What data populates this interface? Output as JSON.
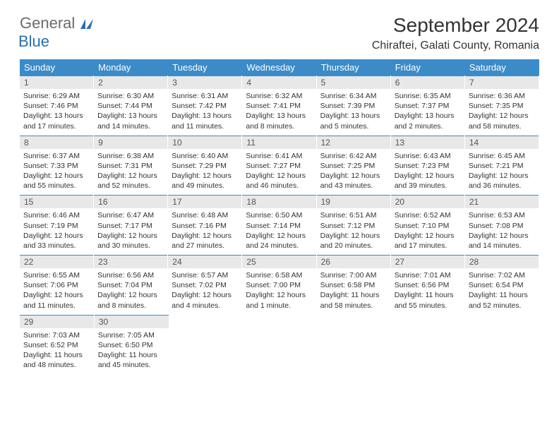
{
  "logo": {
    "main": "General",
    "sub": "Blue"
  },
  "title": "September 2024",
  "location": "Chiraftei, Galati County, Romania",
  "colors": {
    "header_bg": "#3b8bc9",
    "header_text": "#ffffff",
    "daynum_bg": "#e8e8e8",
    "daynum_text": "#555555",
    "body_text": "#333333",
    "logo_gray": "#6b6b6b",
    "logo_blue": "#2a6fb5"
  },
  "dayHeaders": [
    "Sunday",
    "Monday",
    "Tuesday",
    "Wednesday",
    "Thursday",
    "Friday",
    "Saturday"
  ],
  "days": [
    {
      "n": "1",
      "sr": "6:29 AM",
      "ss": "7:46 PM",
      "dl": "13 hours and 17 minutes."
    },
    {
      "n": "2",
      "sr": "6:30 AM",
      "ss": "7:44 PM",
      "dl": "13 hours and 14 minutes."
    },
    {
      "n": "3",
      "sr": "6:31 AM",
      "ss": "7:42 PM",
      "dl": "13 hours and 11 minutes."
    },
    {
      "n": "4",
      "sr": "6:32 AM",
      "ss": "7:41 PM",
      "dl": "13 hours and 8 minutes."
    },
    {
      "n": "5",
      "sr": "6:34 AM",
      "ss": "7:39 PM",
      "dl": "13 hours and 5 minutes."
    },
    {
      "n": "6",
      "sr": "6:35 AM",
      "ss": "7:37 PM",
      "dl": "13 hours and 2 minutes."
    },
    {
      "n": "7",
      "sr": "6:36 AM",
      "ss": "7:35 PM",
      "dl": "12 hours and 58 minutes."
    },
    {
      "n": "8",
      "sr": "6:37 AM",
      "ss": "7:33 PM",
      "dl": "12 hours and 55 minutes."
    },
    {
      "n": "9",
      "sr": "6:38 AM",
      "ss": "7:31 PM",
      "dl": "12 hours and 52 minutes."
    },
    {
      "n": "10",
      "sr": "6:40 AM",
      "ss": "7:29 PM",
      "dl": "12 hours and 49 minutes."
    },
    {
      "n": "11",
      "sr": "6:41 AM",
      "ss": "7:27 PM",
      "dl": "12 hours and 46 minutes."
    },
    {
      "n": "12",
      "sr": "6:42 AM",
      "ss": "7:25 PM",
      "dl": "12 hours and 43 minutes."
    },
    {
      "n": "13",
      "sr": "6:43 AM",
      "ss": "7:23 PM",
      "dl": "12 hours and 39 minutes."
    },
    {
      "n": "14",
      "sr": "6:45 AM",
      "ss": "7:21 PM",
      "dl": "12 hours and 36 minutes."
    },
    {
      "n": "15",
      "sr": "6:46 AM",
      "ss": "7:19 PM",
      "dl": "12 hours and 33 minutes."
    },
    {
      "n": "16",
      "sr": "6:47 AM",
      "ss": "7:17 PM",
      "dl": "12 hours and 30 minutes."
    },
    {
      "n": "17",
      "sr": "6:48 AM",
      "ss": "7:16 PM",
      "dl": "12 hours and 27 minutes."
    },
    {
      "n": "18",
      "sr": "6:50 AM",
      "ss": "7:14 PM",
      "dl": "12 hours and 24 minutes."
    },
    {
      "n": "19",
      "sr": "6:51 AM",
      "ss": "7:12 PM",
      "dl": "12 hours and 20 minutes."
    },
    {
      "n": "20",
      "sr": "6:52 AM",
      "ss": "7:10 PM",
      "dl": "12 hours and 17 minutes."
    },
    {
      "n": "21",
      "sr": "6:53 AM",
      "ss": "7:08 PM",
      "dl": "12 hours and 14 minutes."
    },
    {
      "n": "22",
      "sr": "6:55 AM",
      "ss": "7:06 PM",
      "dl": "12 hours and 11 minutes."
    },
    {
      "n": "23",
      "sr": "6:56 AM",
      "ss": "7:04 PM",
      "dl": "12 hours and 8 minutes."
    },
    {
      "n": "24",
      "sr": "6:57 AM",
      "ss": "7:02 PM",
      "dl": "12 hours and 4 minutes."
    },
    {
      "n": "25",
      "sr": "6:58 AM",
      "ss": "7:00 PM",
      "dl": "12 hours and 1 minute."
    },
    {
      "n": "26",
      "sr": "7:00 AM",
      "ss": "6:58 PM",
      "dl": "11 hours and 58 minutes."
    },
    {
      "n": "27",
      "sr": "7:01 AM",
      "ss": "6:56 PM",
      "dl": "11 hours and 55 minutes."
    },
    {
      "n": "28",
      "sr": "7:02 AM",
      "ss": "6:54 PM",
      "dl": "11 hours and 52 minutes."
    },
    {
      "n": "29",
      "sr": "7:03 AM",
      "ss": "6:52 PM",
      "dl": "11 hours and 48 minutes."
    },
    {
      "n": "30",
      "sr": "7:05 AM",
      "ss": "6:50 PM",
      "dl": "11 hours and 45 minutes."
    }
  ],
  "labels": {
    "sunrise": "Sunrise:",
    "sunset": "Sunset:",
    "daylight": "Daylight:"
  }
}
